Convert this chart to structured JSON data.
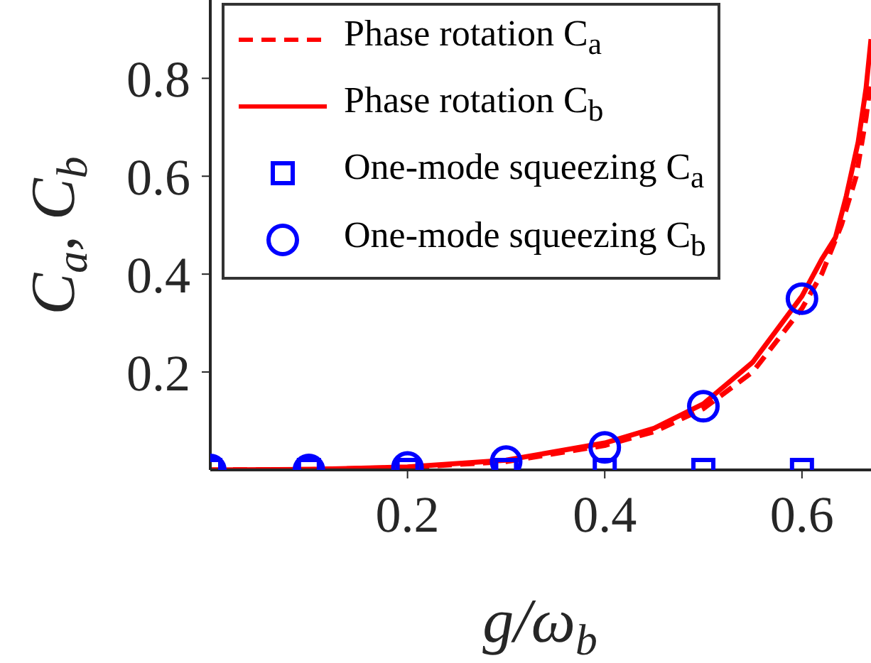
{
  "chart_data": {
    "type": "line",
    "xlabel": "g/ω$_{b}$",
    "ylabel": "C$_{a}$, C$_{b}$",
    "xlim": [
      0,
      0.67
    ],
    "ylim": [
      0,
      0.96
    ],
    "xticks": [
      0.2,
      0.4,
      0.6
    ],
    "yticks": [
      0.2,
      0.4,
      0.6,
      0.8
    ],
    "grid": false,
    "legend": "top",
    "series": [
      {
        "name": "Phase rotation C$_{a}$",
        "color": "#ff0000",
        "line_style": "dashed",
        "marker": "none",
        "x": [
          0,
          0.1,
          0.2,
          0.3,
          0.4,
          0.45,
          0.5,
          0.55,
          0.6,
          0.62,
          0.64,
          0.655,
          0.665,
          0.67
        ],
        "values": [
          0,
          0.001,
          0.005,
          0.017,
          0.05,
          0.078,
          0.125,
          0.2,
          0.33,
          0.4,
          0.5,
          0.6,
          0.72,
          0.8
        ]
      },
      {
        "name": "Phase rotation C$_{b}$",
        "color": "#ff0000",
        "line_style": "solid",
        "marker": "none",
        "x": [
          0,
          0.1,
          0.2,
          0.3,
          0.4,
          0.45,
          0.5,
          0.55,
          0.6,
          0.62,
          0.634,
          0.645,
          0.657,
          0.665,
          0.67
        ],
        "values": [
          0,
          0.001,
          0.006,
          0.02,
          0.055,
          0.085,
          0.135,
          0.22,
          0.355,
          0.43,
          0.475,
          0.56,
          0.67,
          0.78,
          0.88
        ]
      },
      {
        "name": "One-mode squeezing C$_{a}$",
        "type": "scatter",
        "color": "#0000ff",
        "marker": "square",
        "x": [
          0,
          0.1,
          0.2,
          0.3,
          0.4,
          0.5,
          0.6
        ],
        "values": [
          0,
          0,
          0,
          0,
          0,
          0,
          0
        ]
      },
      {
        "name": "One-mode squeezing C$_{b}$",
        "type": "scatter",
        "color": "#0000ff",
        "marker": "circle",
        "x": [
          0,
          0.1,
          0.2,
          0.3,
          0.4,
          0.5,
          0.6
        ],
        "values": [
          0,
          0,
          0.005,
          0.017,
          0.046,
          0.13,
          0.35
        ]
      }
    ]
  }
}
